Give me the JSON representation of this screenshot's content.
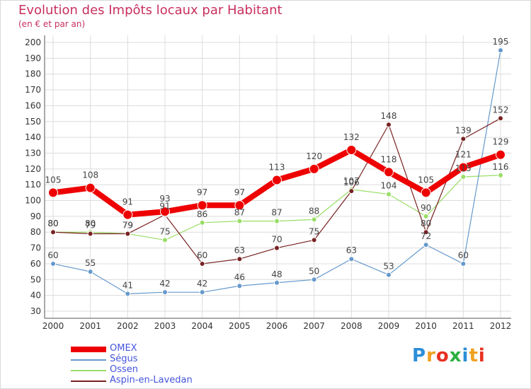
{
  "chart_data": {
    "type": "line",
    "title": "Evolution des Impôts locaux par Habitant",
    "subtitle": "(en € et par an)",
    "xlabel": "",
    "ylabel": "",
    "ylim": [
      30,
      200
    ],
    "yticks": [
      30,
      40,
      50,
      60,
      70,
      80,
      90,
      100,
      110,
      120,
      130,
      140,
      150,
      160,
      170,
      180,
      190,
      200
    ],
    "grid": true,
    "categories": [
      "2000",
      "2001",
      "2002",
      "2003",
      "2004",
      "2005",
      "2006",
      "2007",
      "2008",
      "2009",
      "2010",
      "2011",
      "2012"
    ],
    "series": [
      {
        "name": "OMEX",
        "color": "#ee0000",
        "values": [
          105,
          108,
          91,
          93,
          97,
          97,
          113,
          120,
          132,
          118,
          105,
          121,
          129
        ]
      },
      {
        "name": "Ségus",
        "color": "#6699cc",
        "values": [
          60,
          55,
          41,
          42,
          42,
          46,
          48,
          50,
          63,
          53,
          72,
          60,
          195
        ]
      },
      {
        "name": "Ossen",
        "color": "#99dd66",
        "values": [
          80,
          80,
          79,
          75,
          86,
          87,
          87,
          88,
          107,
          104,
          90,
          115,
          116
        ]
      },
      {
        "name": "Aspin-en-Lavedan",
        "color": "#772222",
        "values": [
          80,
          79,
          79,
          91,
          60,
          63,
          70,
          75,
          106,
          148,
          80,
          139,
          152
        ]
      }
    ]
  },
  "logo": {
    "letters": [
      "P",
      "r",
      "o",
      "x",
      "i",
      "t",
      "i"
    ],
    "colors": [
      "#2b8fd8",
      "#f0a020",
      "#e83020",
      "#2bb040",
      "#2b8fd8",
      "#f0a020",
      "#e83020"
    ]
  }
}
